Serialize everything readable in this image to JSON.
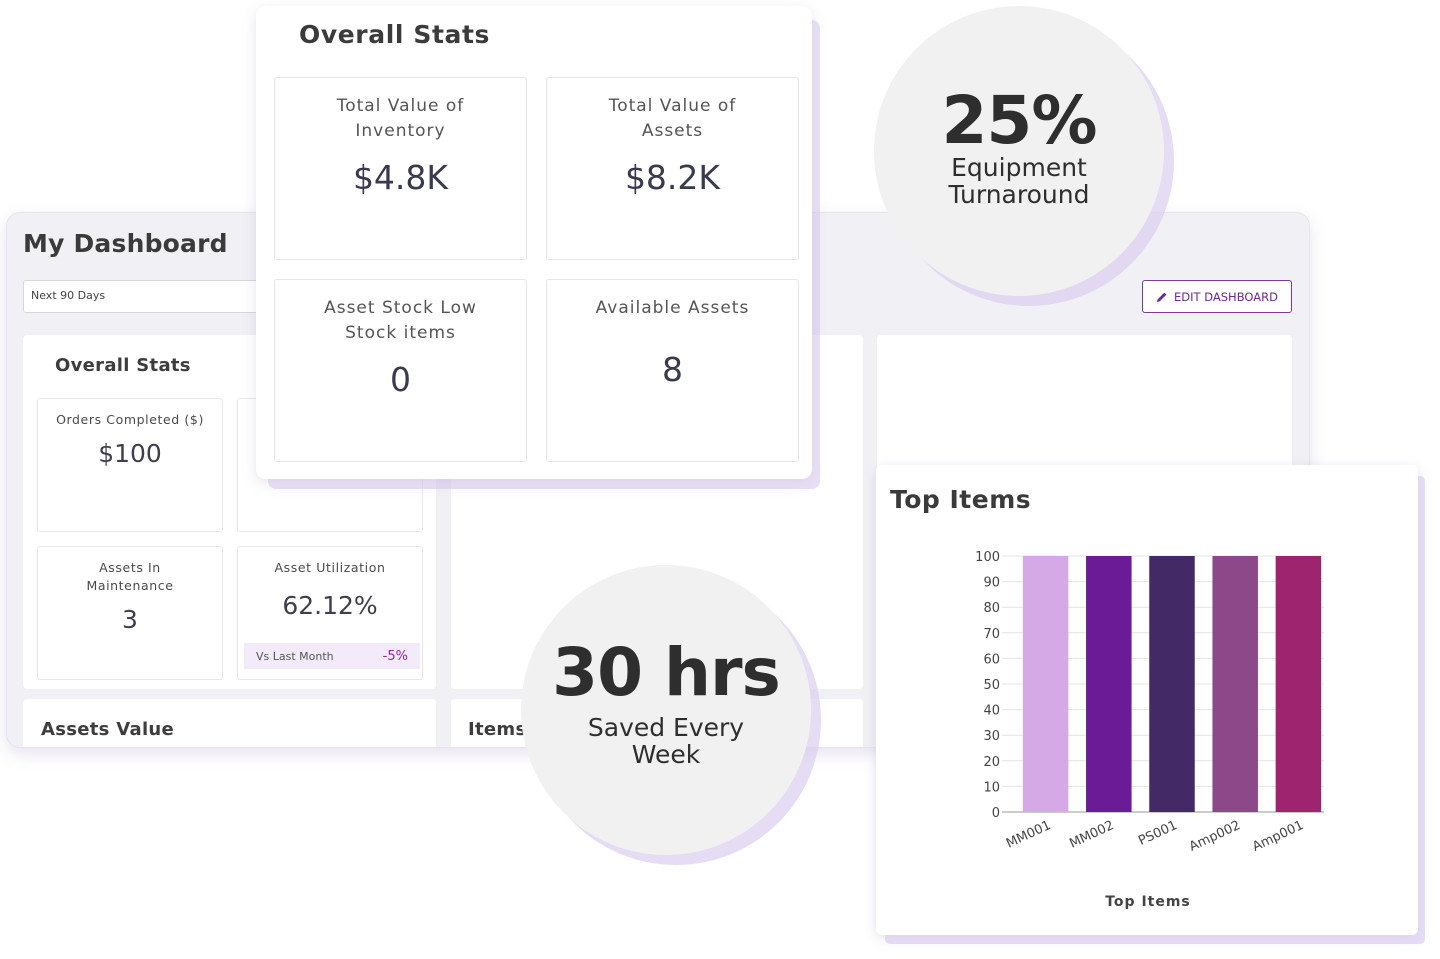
{
  "dashboard": {
    "title": "My Dashboard",
    "date_range": "Next 90 Days",
    "edit_button": "EDIT DASHBOARD",
    "overall_stats": {
      "title": "Overall Stats",
      "cards": [
        {
          "label": "Orders Completed ($)",
          "value": "$100"
        },
        {
          "label": "Assets In Maintenance",
          "value": "3"
        },
        {
          "label": "Asset Utilization",
          "value": "62.12%",
          "comparison_label": "Vs Last Month",
          "comparison_value": "-5%"
        }
      ]
    },
    "assets_value_title": "Assets Value",
    "items_title": "Items"
  },
  "front_stats": {
    "title": "Overall Stats",
    "cards": [
      {
        "label_line1": "Total Value of",
        "label_line2": "Inventory",
        "value": "$4.8K"
      },
      {
        "label_line1": "Total Value of",
        "label_line2": "Assets",
        "value": "$8.2K"
      },
      {
        "label_line1": "Asset Stock Low",
        "label_line2": "Stock items",
        "value": "0"
      },
      {
        "label_line1": "Available Assets",
        "label_line2": "",
        "value": "8"
      }
    ]
  },
  "callouts": {
    "turnaround": {
      "value": "25%",
      "caption_line1": "Equipment",
      "caption_line2": "Turnaround"
    },
    "saved": {
      "value": "30 hrs",
      "caption_line1": "Saved Every",
      "caption_line2": "Week"
    }
  },
  "top_items": {
    "title": "Top Items"
  },
  "chart_data": {
    "type": "bar",
    "title": "Top Items",
    "xlabel": "Top Items",
    "ylabel": "",
    "categories": [
      "MM001",
      "MM002",
      "PS001",
      "Amp002",
      "Amp001"
    ],
    "values": [
      100,
      100,
      100,
      100,
      100
    ],
    "colors": [
      "#d4a9e6",
      "#6a1b95",
      "#432a66",
      "#8c4889",
      "#9e2470"
    ],
    "ylim": [
      0,
      100
    ],
    "yticks": [
      0,
      10,
      20,
      30,
      40,
      50,
      60,
      70,
      80,
      90,
      100
    ],
    "grid": true,
    "legend": "none"
  }
}
